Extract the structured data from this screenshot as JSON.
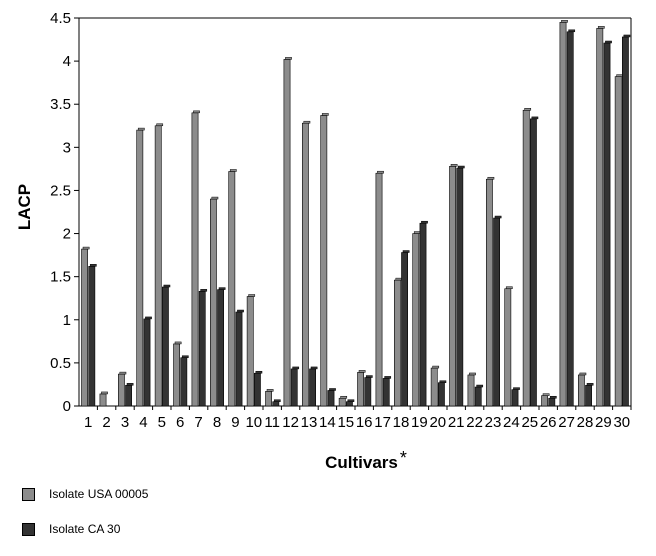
{
  "chart_data": {
    "type": "bar",
    "xlabel": "Cultivars",
    "xlabel_suffix": "*",
    "ylabel": "LACP",
    "ylim": [
      0,
      4.5
    ],
    "yticks": [
      "0",
      "0.5",
      "1",
      "1.5",
      "2",
      "2.5",
      "3",
      "3.5",
      "4",
      "4.5"
    ],
    "categories": [
      "1",
      "2",
      "3",
      "4",
      "5",
      "6",
      "7",
      "8",
      "9",
      "10",
      "11",
      "12",
      "13",
      "14",
      "15",
      "16",
      "17",
      "18",
      "19",
      "20",
      "21",
      "22",
      "23",
      "24",
      "25",
      "26",
      "27",
      "28",
      "29",
      "30"
    ],
    "series": [
      {
        "name": "Isolate USA 00005",
        "color": "#8c8c8c",
        "values": [
          1.82,
          0.14,
          0.37,
          3.2,
          3.25,
          0.72,
          3.4,
          2.4,
          2.72,
          1.27,
          0.17,
          4.02,
          3.28,
          3.37,
          0.09,
          0.39,
          2.7,
          1.46,
          2.0,
          0.44,
          2.78,
          0.36,
          2.63,
          1.36,
          3.43,
          0.12,
          4.45,
          0.36,
          4.38,
          3.82
        ]
      },
      {
        "name": "Isolate CA 30",
        "color": "#333333",
        "values": [
          1.62,
          0.0,
          0.24,
          1.01,
          1.38,
          0.56,
          1.33,
          1.35,
          1.09,
          0.38,
          0.05,
          0.43,
          0.43,
          0.18,
          0.05,
          0.33,
          0.32,
          1.78,
          2.12,
          0.27,
          2.76,
          0.22,
          2.18,
          0.19,
          3.33,
          0.09,
          4.34,
          0.24,
          4.21,
          4.28
        ]
      }
    ],
    "grid": false,
    "legend_position": "bottom-left"
  }
}
